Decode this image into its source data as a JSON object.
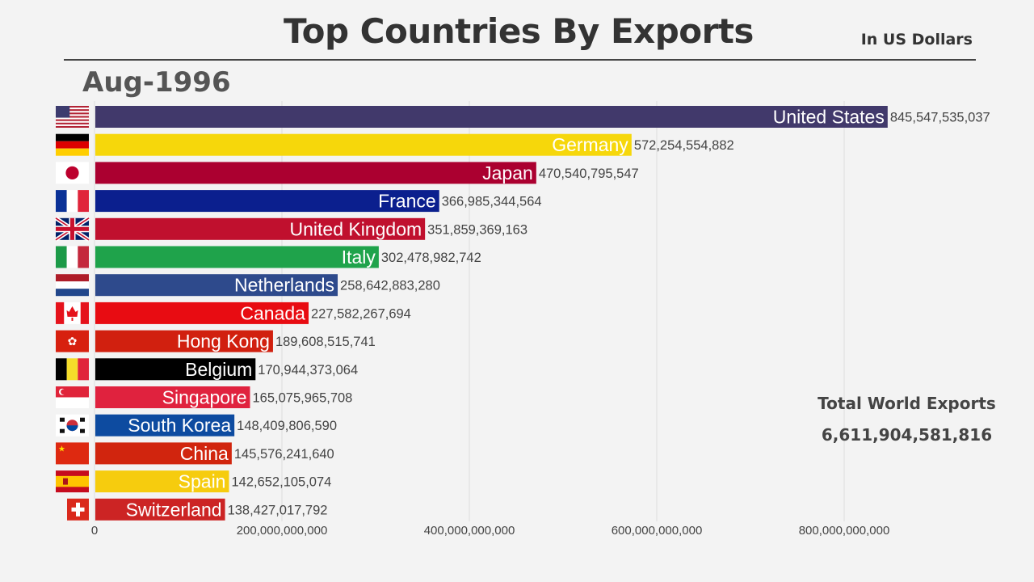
{
  "header": {
    "title": "Top Countries By Exports",
    "unit": "In US Dollars",
    "date": "Aug-1996"
  },
  "total": {
    "label": "Total World Exports",
    "value": "6,611,904,581,816"
  },
  "chart_data": {
    "type": "bar",
    "orientation": "horizontal",
    "title": "Top Countries By Exports",
    "xlim": [
      0,
      1000000000000
    ],
    "grid": true,
    "ticks": [
      {
        "value": 0,
        "label": "0"
      },
      {
        "value": 200000000000,
        "label": "200,000,000,000"
      },
      {
        "value": 400000000000,
        "label": "400,000,000,000"
      },
      {
        "value": 600000000000,
        "label": "600,000,000,000"
      },
      {
        "value": 800000000000,
        "label": "800,000,000,000"
      }
    ],
    "bars": [
      {
        "name": "United States",
        "value": 845547535037,
        "label": "845,547,535,037",
        "color": "#41396b",
        "flag": "us"
      },
      {
        "name": "Germany",
        "value": 572254554882,
        "label": "572,254,554,882",
        "color": "#f6d70b",
        "flag": "de"
      },
      {
        "name": "Japan",
        "value": 470540795547,
        "label": "470,540,795,547",
        "color": "#ab0030",
        "flag": "jp"
      },
      {
        "name": "France",
        "value": 366985344564,
        "label": "366,985,344,564",
        "color": "#0b1f8e",
        "flag": "fr"
      },
      {
        "name": "United Kingdom",
        "value": 351859369163,
        "label": "351,859,369,163",
        "color": "#c0102e",
        "flag": "gb"
      },
      {
        "name": "Italy",
        "value": 302478982742,
        "label": "302,478,982,742",
        "color": "#1fa34b",
        "flag": "it"
      },
      {
        "name": "Netherlands",
        "value": 258642883280,
        "label": "258,642,883,280",
        "color": "#2e4a8c",
        "flag": "nl"
      },
      {
        "name": "Canada",
        "value": 227582267694,
        "label": "227,582,267,694",
        "color": "#e80c12",
        "flag": "ca"
      },
      {
        "name": "Hong Kong",
        "value": 189608515741,
        "label": "189,608,515,741",
        "color": "#d1200f",
        "flag": "hk"
      },
      {
        "name": "Belgium",
        "value": 170944373064,
        "label": "170,944,373,064",
        "color": "#000000",
        "flag": "be"
      },
      {
        "name": "Singapore",
        "value": 165075965708,
        "label": "165,075,965,708",
        "color": "#e0223e",
        "flag": "sg"
      },
      {
        "name": "South Korea",
        "value": 148409806590,
        "label": "148,409,806,590",
        "color": "#0d4ba0",
        "flag": "kr"
      },
      {
        "name": "China",
        "value": 145576241640,
        "label": "145,576,241,640",
        "color": "#d1250e",
        "flag": "cn"
      },
      {
        "name": "Spain",
        "value": 142652105074,
        "label": "142,652,105,074",
        "color": "#f6cc0e",
        "flag": "es"
      },
      {
        "name": "Switzerland",
        "value": 138427017792,
        "label": "138,427,017,792",
        "color": "#cc2424",
        "flag": "ch"
      }
    ]
  }
}
